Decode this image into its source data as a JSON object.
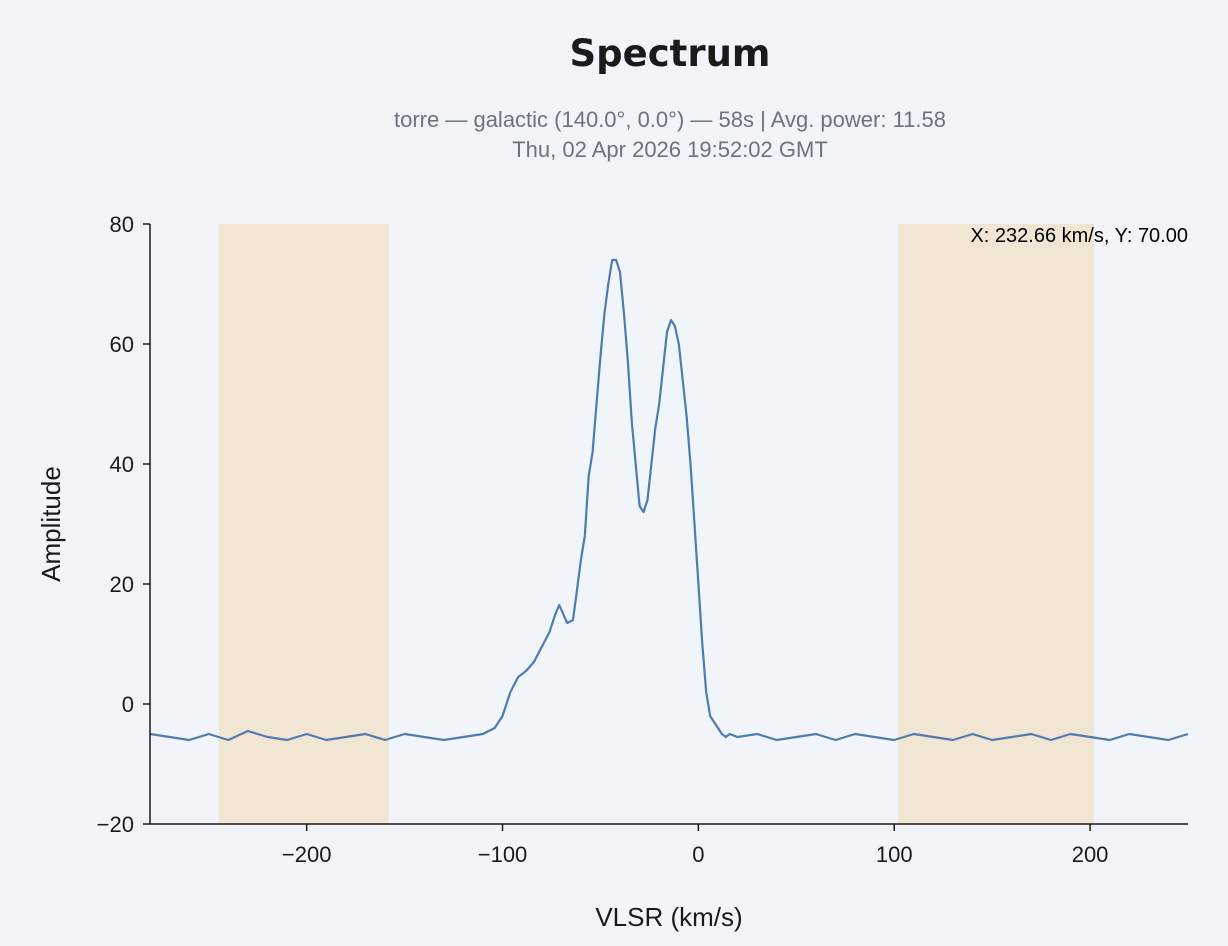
{
  "chart_data": {
    "type": "line",
    "title": "Spectrum",
    "subtitle_line1": "torre — galactic (140.0°, 0.0°) — 58s | Avg. power: 11.58",
    "subtitle_line2": "Thu, 02 Apr 2026 19:52:02 GMT",
    "xlabel": "VLSR (km/s)",
    "ylabel": "Amplitude",
    "xlim": [
      -280,
      250
    ],
    "ylim": [
      -20,
      80
    ],
    "xticks": [
      -200,
      -100,
      0,
      100,
      200
    ],
    "xtick_labels": [
      "−200",
      "−100",
      "0",
      "100",
      "200"
    ],
    "yticks": [
      -20,
      0,
      20,
      40,
      60,
      80
    ],
    "ytick_labels": [
      "−20",
      "0",
      "20",
      "40",
      "60",
      "80"
    ],
    "grid": false,
    "shaded_regions": [
      {
        "x0": -245,
        "x1": -158
      },
      {
        "x0": 102,
        "x1": 202
      }
    ],
    "series": [
      {
        "color": "#4f7cad",
        "x": [
          -280,
          -270,
          -260,
          -250,
          -240,
          -230,
          -220,
          -210,
          -200,
          -190,
          -180,
          -170,
          -160,
          -150,
          -140,
          -130,
          -120,
          -110,
          -104,
          -100,
          -96,
          -92,
          -88,
          -84,
          -80,
          -76,
          -73,
          -71,
          -69,
          -67,
          -64,
          -62,
          -60,
          -58,
          -56,
          -54,
          -52,
          -50,
          -48,
          -46,
          -44,
          -42,
          -40,
          -38,
          -36,
          -34,
          -32,
          -30,
          -28,
          -26,
          -24,
          -22,
          -20,
          -18,
          -16,
          -14,
          -12,
          -10,
          -8,
          -6,
          -4,
          -2,
          0,
          2,
          4,
          6,
          8,
          10,
          12,
          14,
          16,
          20,
          30,
          40,
          50,
          60,
          70,
          80,
          90,
          100,
          110,
          120,
          130,
          140,
          150,
          160,
          170,
          180,
          190,
          200,
          210,
          220,
          230,
          240,
          250
        ],
        "values": [
          -5,
          -5.5,
          -6,
          -5,
          -6,
          -4.5,
          -5.5,
          -6,
          -5,
          -6,
          -5.5,
          -5,
          -6,
          -5,
          -5.5,
          -6,
          -5.5,
          -5,
          -4,
          -2,
          2,
          4.5,
          5.5,
          7,
          9.5,
          12,
          15,
          16.5,
          15,
          13.5,
          14,
          19,
          24,
          28,
          38,
          42,
          50,
          58,
          65,
          70,
          74,
          74,
          72,
          65,
          57,
          47,
          40,
          33,
          32,
          34,
          40,
          46,
          50,
          56,
          62,
          64,
          63,
          60,
          54,
          48,
          40,
          30,
          20,
          10,
          2,
          -2,
          -3,
          -4,
          -5,
          -5.5,
          -5,
          -5.5,
          -5,
          -6,
          -5.5,
          -5,
          -6,
          -5,
          -5.5,
          -6,
          -5,
          -5.5,
          -6,
          -5,
          -6,
          -5.5,
          -5,
          -6,
          -5,
          -5.5,
          -6,
          -5,
          -5.5,
          -6,
          -5
        ]
      }
    ],
    "readout": "X: 232.66 km/s, Y: 70.00"
  }
}
